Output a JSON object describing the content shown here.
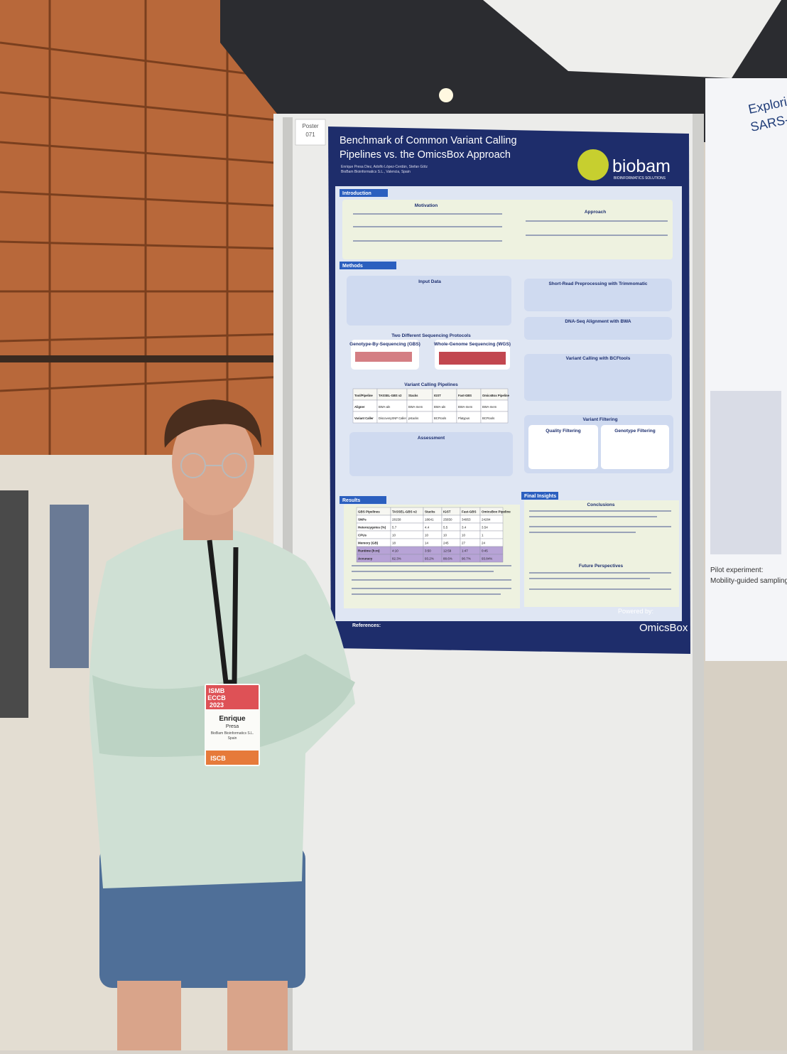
{
  "board": {
    "poster_label": "Poster",
    "poster_number": "071"
  },
  "poster": {
    "title_line1": "Benchmark of Common Variant Calling",
    "title_line2": "Pipelines vs. the OmicsBox Approach",
    "authors": "Enrique Presa Diez, Adolfo López-Cerdán, Stefan Götz",
    "affiliation": "BioBam Bioinformatics S.L., Valencia, Spain",
    "logo": "biobam",
    "logo_sub": "BIOINFORMATICS SOLUTIONS",
    "sections": {
      "introduction": "Introduction",
      "motivation": "Motivation",
      "approach": "Approach",
      "methods": "Methods",
      "input_data": "Input Data",
      "protocols": "Two Different Sequencing Protocols",
      "gbs": "Genotype-By-Sequencing (GBS)",
      "wgs": "Whole-Genome Sequencing (WGS)",
      "pipelines": "Variant Calling Pipelines",
      "assessment": "Assessment",
      "trimmomatic": "Short-Read Preprocessing with Trimmomatic",
      "bwa": "DNA-Seq Alignment with BWA",
      "bcftools": "Variant Calling with BCFtools",
      "filtering": "Variant Filtering",
      "quality_filtering": "Quality Filtering",
      "genotype_filtering": "Genotype Filtering",
      "results": "Results",
      "final_insights": "Final Insights",
      "conclusions": "Conclusions",
      "future": "Future Perspectives",
      "references": "References:"
    },
    "pipelines_table": {
      "rows": [
        [
          "Tool/Pipeline",
          "TASSEL-GBS v2",
          "Stacks",
          "IGST",
          "Fast-GBS",
          "OmicsBox Pipeline"
        ],
        [
          "Aligner",
          "BWA-aln",
          "BWA-mem",
          "BWA-aln",
          "BWA-mem",
          "BWA-mem"
        ],
        [
          "Variant Caller",
          "DiscoverySNP Caller v2",
          "pstacks",
          "BCFtools",
          "Platypus",
          "BCFtools"
        ]
      ]
    },
    "results_table": {
      "rows": [
        [
          "GBS Pipelines",
          "TASSEL-GBS v2",
          "Stacks",
          "IGST",
          "Fast-GBS",
          "OmicsBox Pipeline"
        ],
        [
          "SNPs",
          "28158",
          "18641",
          "25650",
          "34953",
          "24284"
        ],
        [
          "Heterozygotes (%)",
          "5.7",
          "4.4",
          "5.5",
          "3.4",
          "3.54"
        ],
        [
          "CPUs",
          "10",
          "10",
          "10",
          "10",
          "1"
        ],
        [
          "Memory (GB)",
          "18",
          "14",
          "245",
          "27",
          "24"
        ],
        [
          "Runtime (h:m)",
          "4:10",
          "3:50",
          "12:59",
          "1:47",
          "0:45"
        ],
        [
          "Accuracy",
          "82.3%",
          "93.2%",
          "88.6%",
          "90.7%",
          "93.84%"
        ]
      ]
    },
    "powered_by": "Powered by:",
    "omicsbox": "OmicsBox"
  },
  "side_poster": {
    "title": "Exploring",
    "subtitle": "SARS-Co",
    "section": "Pilot experiment:",
    "section_sub": "Mobility-guided sampling"
  },
  "badge": {
    "event_line1": "ISMB",
    "event_line2": "ECCB",
    "event_line3": "2023",
    "first_name": "Enrique",
    "last_name": "Presa",
    "org": "BioBam Bioinformatics S.L.",
    "country": "Spain",
    "society": "ISCB"
  }
}
